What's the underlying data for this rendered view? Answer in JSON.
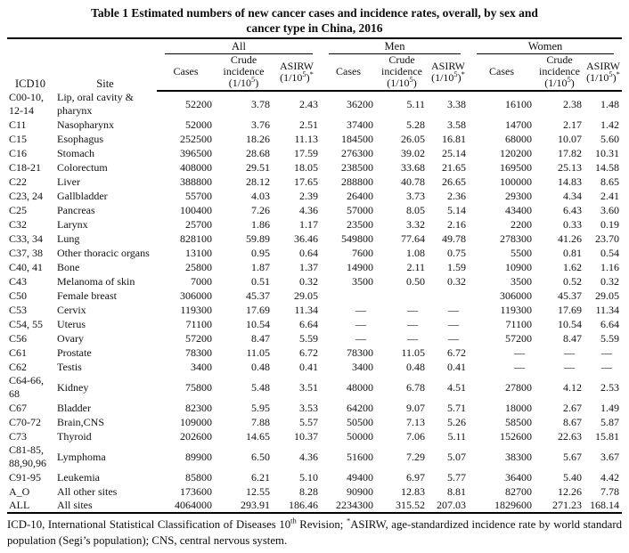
{
  "colors": {
    "background": "#ffffff",
    "text": "#111111",
    "rule": "#000000"
  },
  "title": {
    "line1": "Table 1 Estimated numbers of new cancer cases and incidence rates, overall, by sex and",
    "line2": "cancer type in China, 2016"
  },
  "table": {
    "header": {
      "icd10": "ICD10",
      "site": "Site",
      "groups": [
        {
          "label": "All"
        },
        {
          "label": "Men"
        },
        {
          "label": "Women"
        }
      ],
      "sub": {
        "cases": "Cases",
        "crude_l1": "Crude",
        "crude_l2": "incidence",
        "asirw": "ASIRW",
        "unit_open": "(1/10",
        "unit_sup": "5",
        "unit_close": ")",
        "star": "*"
      }
    },
    "rows": [
      {
        "icd10": "C00-10, 12-14",
        "site": "Lip, oral cavity & pharynx",
        "values": [
          "52200",
          "3.78",
          "2.43",
          "36200",
          "5.11",
          "3.38",
          "16100",
          "2.38",
          "1.48"
        ]
      },
      {
        "icd10": "C11",
        "site": "Nasopharynx",
        "values": [
          "52000",
          "3.76",
          "2.51",
          "37400",
          "5.28",
          "3.58",
          "14700",
          "2.17",
          "1.42"
        ]
      },
      {
        "icd10": "C15",
        "site": "Esophagus",
        "values": [
          "252500",
          "18.26",
          "11.13",
          "184500",
          "26.05",
          "16.81",
          "68000",
          "10.07",
          "5.60"
        ]
      },
      {
        "icd10": "C16",
        "site": "Stomach",
        "values": [
          "396500",
          "28.68",
          "17.59",
          "276300",
          "39.02",
          "25.14",
          "120200",
          "17.82",
          "10.31"
        ]
      },
      {
        "icd10": "C18-21",
        "site": "Colorectum",
        "values": [
          "408000",
          "29.51",
          "18.05",
          "238500",
          "33.68",
          "21.65",
          "169500",
          "25.13",
          "14.58"
        ]
      },
      {
        "icd10": "C22",
        "site": "Liver",
        "values": [
          "388800",
          "28.12",
          "17.65",
          "288800",
          "40.78",
          "26.65",
          "100000",
          "14.83",
          "8.65"
        ]
      },
      {
        "icd10": "C23, 24",
        "site": "Gallbladder",
        "values": [
          "55700",
          "4.03",
          "2.39",
          "26400",
          "3.73",
          "2.36",
          "29300",
          "4.34",
          "2.41"
        ]
      },
      {
        "icd10": "C25",
        "site": "Pancreas",
        "values": [
          "100400",
          "7.26",
          "4.36",
          "57000",
          "8.05",
          "5.14",
          "43400",
          "6.43",
          "3.60"
        ]
      },
      {
        "icd10": "C32",
        "site": "Larynx",
        "values": [
          "25700",
          "1.86",
          "1.17",
          "23500",
          "3.32",
          "2.16",
          "2200",
          "0.33",
          "0.19"
        ]
      },
      {
        "icd10": "C33, 34",
        "site": "Lung",
        "values": [
          "828100",
          "59.89",
          "36.46",
          "549800",
          "77.64",
          "49.78",
          "278300",
          "41.26",
          "23.70"
        ]
      },
      {
        "icd10": "C37, 38",
        "site": "Other thoracic organs",
        "values": [
          "13100",
          "0.95",
          "0.64",
          "7600",
          "1.08",
          "0.75",
          "5500",
          "0.81",
          "0.54"
        ]
      },
      {
        "icd10": "C40, 41",
        "site": "Bone",
        "values": [
          "25800",
          "1.87",
          "1.37",
          "14900",
          "2.11",
          "1.59",
          "10900",
          "1.62",
          "1.16"
        ]
      },
      {
        "icd10": "C43",
        "site": "Melanoma of skin",
        "values": [
          "7000",
          "0.51",
          "0.32",
          "3500",
          "0.50",
          "0.32",
          "3500",
          "0.52",
          "0.32"
        ]
      },
      {
        "icd10": "C50",
        "site": "Female breast",
        "values": [
          "306000",
          "45.37",
          "29.05",
          "",
          "",
          "",
          "306000",
          "45.37",
          "29.05"
        ]
      },
      {
        "icd10": "C53",
        "site": "Cervix",
        "values": [
          "119300",
          "17.69",
          "11.34",
          "—",
          "—",
          "—",
          "119300",
          "17.69",
          "11.34"
        ]
      },
      {
        "icd10": "C54, 55",
        "site": "Uterus",
        "values": [
          "71100",
          "10.54",
          "6.64",
          "—",
          "—",
          "—",
          "71100",
          "10.54",
          "6.64"
        ]
      },
      {
        "icd10": "C56",
        "site": "Ovary",
        "values": [
          "57200",
          "8.47",
          "5.59",
          "—",
          "—",
          "—",
          "57200",
          "8.47",
          "5.59"
        ]
      },
      {
        "icd10": "C61",
        "site": "Prostate",
        "values": [
          "78300",
          "11.05",
          "6.72",
          "78300",
          "11.05",
          "6.72",
          "—",
          "—",
          "—"
        ]
      },
      {
        "icd10": "C62",
        "site": "Testis",
        "values": [
          "3400",
          "0.48",
          "0.41",
          "3400",
          "0.48",
          "0.41",
          "—",
          "—",
          "—"
        ]
      },
      {
        "icd10": "C64-66, 68",
        "site": "Kidney",
        "values": [
          "75800",
          "5.48",
          "3.51",
          "48000",
          "6.78",
          "4.51",
          "27800",
          "4.12",
          "2.53"
        ]
      },
      {
        "icd10": "C67",
        "site": "Bladder",
        "values": [
          "82300",
          "5.95",
          "3.53",
          "64200",
          "9.07",
          "5.71",
          "18000",
          "2.67",
          "1.49"
        ]
      },
      {
        "icd10": "C70-72",
        "site": "Brain,CNS",
        "values": [
          "109000",
          "7.88",
          "5.57",
          "50500",
          "7.13",
          "5.26",
          "58500",
          "8.67",
          "5.87"
        ]
      },
      {
        "icd10": "C73",
        "site": "Thyroid",
        "values": [
          "202600",
          "14.65",
          "10.37",
          "50000",
          "7.06",
          "5.11",
          "152600",
          "22.63",
          "15.81"
        ]
      },
      {
        "icd10": "C81-85, 88,90,96",
        "site": "Lymphoma",
        "values": [
          "89900",
          "6.50",
          "4.36",
          "51600",
          "7.29",
          "5.07",
          "38300",
          "5.67",
          "3.67"
        ]
      },
      {
        "icd10": "C91-95",
        "site": "Leukemia",
        "values": [
          "85800",
          "6.21",
          "5.10",
          "49400",
          "6.97",
          "5.77",
          "36400",
          "5.40",
          "4.42"
        ]
      },
      {
        "icd10": "A_O",
        "site": "All other sites",
        "values": [
          "173600",
          "12.55",
          "8.28",
          "90900",
          "12.83",
          "8.81",
          "82700",
          "12.26",
          "7.78"
        ]
      },
      {
        "icd10": "ALL",
        "site": "All sites",
        "values": [
          "4064000",
          "293.91",
          "186.46",
          "2234300",
          "315.52",
          "207.03",
          "1829600",
          "271.23",
          "168.14"
        ]
      }
    ]
  },
  "footnote": {
    "part1": "ICD-10, International Statistical Classification of Diseases 10",
    "sup1": "th",
    "part2": " Revision; ",
    "sup2": "*",
    "part3": "ASIRW, age-standardized incidence rate by world standard population (Segi’s population); CNS, central nervous system."
  }
}
